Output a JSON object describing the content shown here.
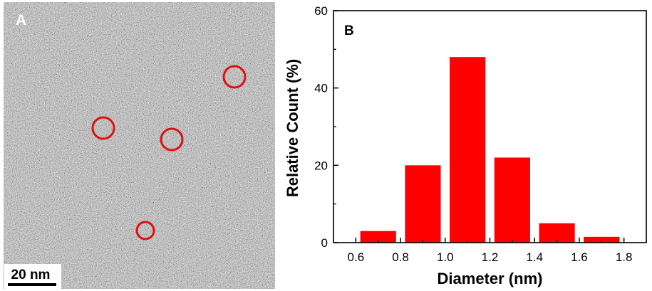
{
  "panels": {
    "a": {
      "label": "A",
      "scale_bar_text": "20 nm",
      "circle_count": 4,
      "circle_color": "#e01010",
      "scale_bar_color": "#000000",
      "image_color": "#808080"
    },
    "b": {
      "label": "B"
    }
  },
  "chart_data": {
    "type": "bar",
    "title": "",
    "xlabel": "Diameter (nm)",
    "ylabel": "Relative Count (%)",
    "x_centers": [
      0.7,
      0.9,
      1.1,
      1.3,
      1.5,
      1.7
    ],
    "values": [
      3,
      20,
      48,
      22,
      5,
      1.5
    ],
    "xlim": [
      0.5,
      1.9
    ],
    "ylim": [
      0,
      60
    ],
    "xticks": [
      0.6,
      0.8,
      1.0,
      1.2,
      1.4,
      1.6,
      1.8
    ],
    "xtick_labels": [
      "0.6",
      "0.8",
      "1.0",
      "1.2",
      "1.4",
      "1.6",
      "1.8"
    ],
    "yticks": [
      0,
      20,
      40,
      60
    ],
    "ytick_labels": [
      "0",
      "20",
      "40",
      "60"
    ],
    "bar_color": "#ff0000",
    "grid": false,
    "legend": "none"
  }
}
